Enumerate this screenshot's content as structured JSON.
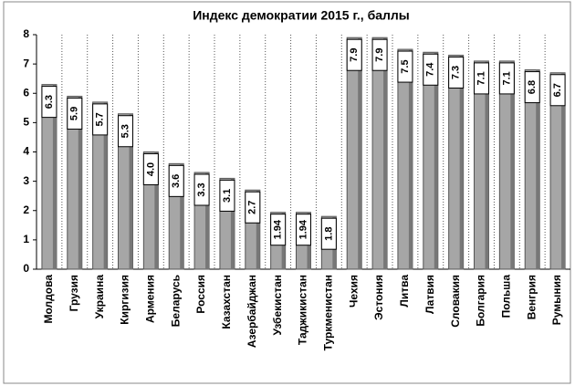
{
  "chart_data": {
    "type": "bar",
    "title": "Индекс демократии 2015 г., баллы",
    "categories": [
      "Молдова",
      "Грузия",
      "Украина",
      "Киргизия",
      "Армения",
      "Беларусь",
      "Россия",
      "Казахстан",
      "Азербайджан",
      "Узбекистан",
      "Таджикистан",
      "Туркменистан",
      "Чехия",
      "Эстония",
      "Литва",
      "Латвия",
      "Словакия",
      "Болгария",
      "Польша",
      "Венгрия",
      "Румыния"
    ],
    "values": [
      6.3,
      5.9,
      5.7,
      5.3,
      4.0,
      3.6,
      3.3,
      3.1,
      2.7,
      1.94,
      1.94,
      1.8,
      7.9,
      7.9,
      7.5,
      7.4,
      7.3,
      7.1,
      7.1,
      6.8,
      6.7
    ],
    "value_labels": [
      "6.3",
      "5.9",
      "5.7",
      "5.3",
      "4.0",
      "3.6",
      "3.3",
      "3.1",
      "2.7",
      "1.94",
      "1.94",
      "1.8",
      "7.9",
      "7.9",
      "7.5",
      "7.4",
      "7.3",
      "7.1",
      "7.1",
      "6.8",
      "6.7"
    ],
    "color": "#a6a6a6",
    "ylim": [
      0,
      8
    ],
    "yticks": [
      0,
      1,
      2,
      3,
      4,
      5,
      6,
      7,
      8
    ]
  }
}
